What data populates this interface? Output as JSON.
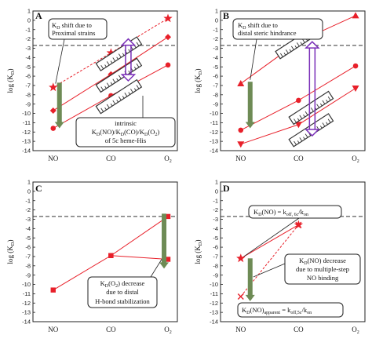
{
  "y_axis_label": "log (K",
  "y_axis_label_sub": "D",
  "chart_data": [
    {
      "panel": "A",
      "type": "line",
      "categories": [
        "NO",
        "CO",
        "O2"
      ],
      "ylim": [
        -14,
        1
      ],
      "yticks": [
        1,
        0,
        -1,
        -2,
        -3,
        -4,
        -5,
        -6,
        -7,
        -8,
        -9,
        -10,
        -11,
        -12,
        -13,
        -14
      ],
      "dashed_y": -2.7,
      "series": [
        {
          "marker": "star",
          "style": "dashed",
          "values": [
            -7.2,
            -3.5,
            0.2
          ]
        },
        {
          "marker": "diamond",
          "style": "solid",
          "values": [
            -9.7,
            -5.8,
            -1.8
          ]
        },
        {
          "marker": "circle",
          "style": "solid",
          "values": [
            -11.6,
            -8.1,
            -4.8
          ]
        }
      ],
      "green_arrow": {
        "x": "NO",
        "from": -6.7,
        "to": -11.6
      },
      "purple_arrow": {
        "x": "CO_O2",
        "from": -2.0,
        "to": -6.5
      },
      "annotations": [
        {
          "main": "K",
          "sub": "D",
          "rest": " shift due to"
        },
        {
          "main": "Proximal strains"
        },
        {
          "main": "intrinsic"
        },
        {
          "main": "K",
          "sub": "D",
          "rest": "(NO)/K",
          "sub2": "D",
          "rest2": "(CO)/K",
          "sub3": "D",
          "rest3": "(O",
          "sub4": "2",
          "rest4": ")"
        },
        {
          "main": "of 5c heme-His"
        }
      ]
    },
    {
      "panel": "B",
      "type": "line",
      "categories": [
        "NO",
        "CO",
        "O2"
      ],
      "ylim": [
        -14,
        1
      ],
      "yticks": [
        1,
        0,
        -1,
        -2,
        -3,
        -4,
        -5,
        -6,
        -7,
        -8,
        -9,
        -10,
        -11,
        -12,
        -13,
        -14
      ],
      "dashed_y": -2.7,
      "series": [
        {
          "marker": "triangle-up",
          "style": "solid",
          "values": [
            -6.8,
            -2.3,
            0.5
          ]
        },
        {
          "marker": "circle",
          "style": "solid",
          "values": [
            -11.8,
            -8.6,
            -4.9
          ]
        },
        {
          "marker": "triangle-down",
          "style": "solid",
          "values": [
            -13.3,
            -11.2,
            -7.3
          ]
        }
      ],
      "green_arrow": {
        "x": "NO",
        "from": -6.6,
        "to": -11.6
      },
      "purple_arrow": {
        "x": "CO_O2",
        "from": -2.3,
        "to": -12.4
      },
      "annotations": [
        {
          "main": "K",
          "sub": "D",
          "rest": " shift due to"
        },
        {
          "main": "distal steric hindrance"
        }
      ]
    },
    {
      "panel": "C",
      "type": "line",
      "categories": [
        "NO",
        "CO",
        "O2"
      ],
      "ylim": [
        -14,
        1
      ],
      "yticks": [
        1,
        0,
        -1,
        -2,
        -3,
        -4,
        -5,
        -6,
        -7,
        -8,
        -9,
        -10,
        -11,
        -12,
        -13,
        -14
      ],
      "dashed_y": -2.7,
      "series": [
        {
          "marker": "square",
          "style": "solid",
          "values": [
            -10.6,
            -6.9,
            -2.7
          ]
        },
        {
          "marker": "square",
          "style": "solid",
          "values": [
            null,
            -6.9,
            -7.3
          ]
        }
      ],
      "green_arrow": {
        "x": "O2",
        "from": -2.4,
        "to": -8.3
      },
      "annotations": [
        {
          "main": "K",
          "sub": "D",
          "rest": "(O",
          "sub2": "2",
          "rest2": ") decrease"
        },
        {
          "main": "due to distal"
        },
        {
          "main": "H-bond stabilization"
        }
      ]
    },
    {
      "panel": "D",
      "type": "line",
      "categories": [
        "NO",
        "CO",
        "O2"
      ],
      "ylim": [
        -14,
        1
      ],
      "yticks": [
        1,
        0,
        -1,
        -2,
        -3,
        -4,
        -5,
        -6,
        -7,
        -8,
        -9,
        -10,
        -11,
        -12,
        -13,
        -14
      ],
      "dashed_y": -2.7,
      "series": [
        {
          "marker": "star",
          "style": "solid",
          "values": [
            -7.2,
            -3.6,
            null
          ]
        },
        {
          "marker": "x",
          "style": "dashed",
          "values": [
            -11.3,
            -3.6,
            null
          ]
        }
      ],
      "green_arrow": {
        "x": "NO",
        "from": -7.2,
        "to": -11.8
      },
      "annotations": [
        {
          "main": "K",
          "sub": "D",
          "rest": "(NO) = k",
          "sub2": "off, 6c",
          "rest2": "/k",
          "sub3": "on"
        },
        {
          "main": "K",
          "sub": "D",
          "rest": "(NO) decrease"
        },
        {
          "main": "due to multiple-step"
        },
        {
          "main": "NO binding"
        },
        {
          "main": "K",
          "sub": "D",
          "rest": "(NO)",
          "sub2": "apparent",
          "rest2": " = k",
          "sub3": "off,5c",
          "rest3": "/k",
          "sub4": "on"
        }
      ]
    }
  ],
  "colors": {
    "red": "#e8202a",
    "green": "#6e8b55",
    "purple": "#7a2fb8",
    "grid_dash": "#333333"
  }
}
